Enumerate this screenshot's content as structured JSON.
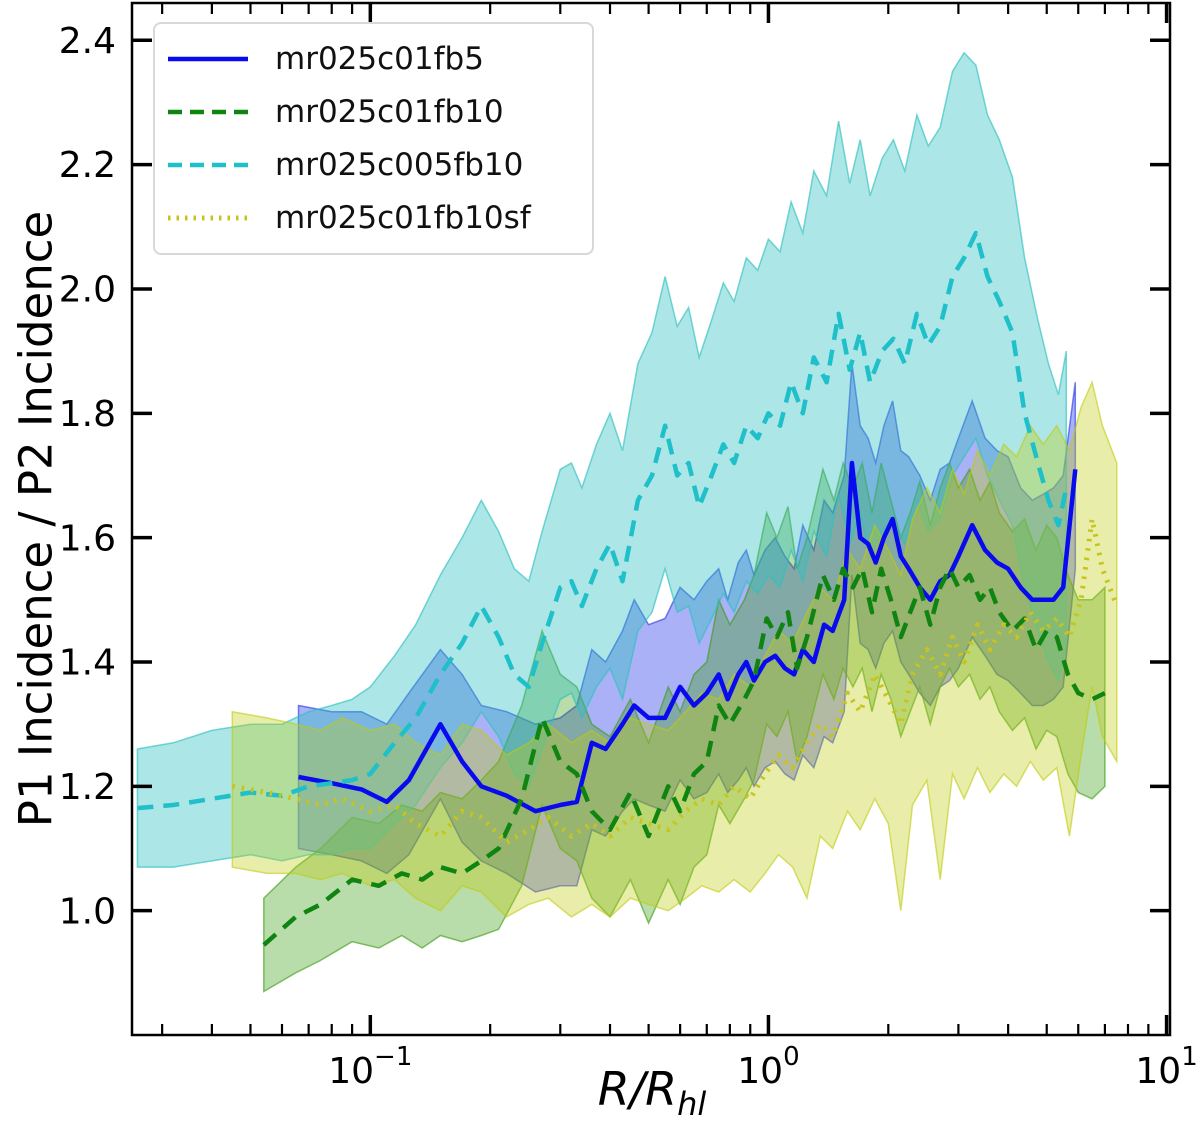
{
  "chart_data": {
    "type": "line",
    "xlabel_main": "R/R",
    "xlabel_sub": "hl",
    "ylabel": "P1 Incidence / P2 Incidence",
    "x_scale": "log",
    "grid": false,
    "legend_position": "upper-left",
    "xlim": [
      0.0252,
      10.2
    ],
    "ylim": [
      0.8,
      2.46
    ],
    "yticks": [
      1.0,
      1.2,
      1.4,
      1.6,
      1.8,
      2.0,
      2.2,
      2.4
    ],
    "xticks": [
      {
        "value": 0.1,
        "base": "10",
        "exp": "−1"
      },
      {
        "value": 1,
        "base": "10",
        "exp": "0"
      },
      {
        "value": 10,
        "base": "10",
        "exp": "1"
      }
    ],
    "axis_color": "#000000",
    "series": [
      {
        "label": "mr025c01fb5",
        "color": "#0a0aee",
        "dash": "solid",
        "band_color": "#2d3de8",
        "band_opacity": 0.4,
        "x": [
          0.066,
          0.08,
          0.095,
          0.11,
          0.125,
          0.15,
          0.17,
          0.19,
          0.22,
          0.26,
          0.3,
          0.33,
          0.36,
          0.39,
          0.43,
          0.46,
          0.5,
          0.55,
          0.6,
          0.65,
          0.7,
          0.75,
          0.79,
          0.84,
          0.88,
          0.92,
          0.98,
          1.04,
          1.1,
          1.16,
          1.22,
          1.3,
          1.38,
          1.45,
          1.55,
          1.62,
          1.7,
          1.78,
          1.86,
          1.95,
          2.05,
          2.15,
          2.25,
          2.4,
          2.55,
          2.7,
          2.85,
          3.0,
          3.25,
          3.5,
          3.75,
          4.0,
          4.3,
          4.6,
          4.9,
          5.2,
          5.5,
          5.9
        ],
        "y": [
          1.215,
          1.205,
          1.195,
          1.175,
          1.21,
          1.3,
          1.24,
          1.2,
          1.185,
          1.16,
          1.17,
          1.175,
          1.27,
          1.26,
          1.3,
          1.33,
          1.31,
          1.31,
          1.36,
          1.33,
          1.35,
          1.38,
          1.34,
          1.38,
          1.4,
          1.37,
          1.4,
          1.41,
          1.39,
          1.38,
          1.42,
          1.4,
          1.46,
          1.45,
          1.5,
          1.72,
          1.6,
          1.59,
          1.56,
          1.6,
          1.63,
          1.57,
          1.55,
          1.52,
          1.5,
          1.53,
          1.54,
          1.57,
          1.62,
          1.58,
          1.56,
          1.55,
          1.52,
          1.5,
          1.5,
          1.5,
          1.52,
          1.71
        ],
        "band_upper": [
          1.33,
          1.32,
          1.32,
          1.3,
          1.35,
          1.42,
          1.38,
          1.33,
          1.32,
          1.3,
          1.31,
          1.33,
          1.42,
          1.4,
          1.45,
          1.5,
          1.46,
          1.47,
          1.52,
          1.5,
          1.53,
          1.55,
          1.5,
          1.56,
          1.58,
          1.54,
          1.58,
          1.6,
          1.57,
          1.55,
          1.62,
          1.58,
          1.66,
          1.64,
          1.7,
          1.88,
          1.78,
          1.76,
          1.72,
          1.78,
          1.82,
          1.74,
          1.73,
          1.7,
          1.66,
          1.71,
          1.72,
          1.76,
          1.82,
          1.76,
          1.74,
          1.73,
          1.68,
          1.66,
          1.67,
          1.68,
          1.7,
          1.85
        ],
        "band_lower": [
          1.1,
          1.09,
          1.08,
          1.06,
          1.09,
          1.18,
          1.11,
          1.08,
          1.06,
          1.03,
          1.04,
          1.04,
          1.13,
          1.12,
          1.16,
          1.18,
          1.17,
          1.16,
          1.21,
          1.18,
          1.19,
          1.22,
          1.19,
          1.21,
          1.23,
          1.2,
          1.23,
          1.24,
          1.22,
          1.21,
          1.25,
          1.23,
          1.28,
          1.27,
          1.32,
          1.54,
          1.43,
          1.42,
          1.39,
          1.43,
          1.45,
          1.4,
          1.38,
          1.35,
          1.33,
          1.36,
          1.37,
          1.39,
          1.44,
          1.41,
          1.38,
          1.37,
          1.35,
          1.33,
          1.33,
          1.34,
          1.36,
          1.55
        ]
      },
      {
        "label": "mr025c01fb10",
        "color": "#108410",
        "dash": "dashed",
        "band_color": "#379b0f",
        "band_opacity": 0.35,
        "x": [
          0.054,
          0.065,
          0.075,
          0.09,
          0.105,
          0.12,
          0.135,
          0.15,
          0.17,
          0.19,
          0.21,
          0.24,
          0.27,
          0.3,
          0.33,
          0.36,
          0.4,
          0.45,
          0.5,
          0.56,
          0.6,
          0.65,
          0.7,
          0.75,
          0.8,
          0.87,
          0.92,
          0.99,
          1.05,
          1.12,
          1.18,
          1.25,
          1.37,
          1.46,
          1.54,
          1.63,
          1.72,
          1.82,
          1.92,
          2.03,
          2.15,
          2.27,
          2.4,
          2.55,
          2.7,
          2.85,
          3.0,
          3.2,
          3.4,
          3.6,
          3.8,
          4.1,
          4.4,
          4.7,
          5.0,
          5.3,
          5.65,
          6.0,
          6.5,
          7.0
        ],
        "y": [
          0.945,
          0.99,
          1.01,
          1.05,
          1.04,
          1.06,
          1.05,
          1.07,
          1.06,
          1.08,
          1.1,
          1.18,
          1.31,
          1.24,
          1.22,
          1.16,
          1.13,
          1.19,
          1.12,
          1.2,
          1.16,
          1.22,
          1.24,
          1.33,
          1.3,
          1.34,
          1.37,
          1.47,
          1.44,
          1.48,
          1.39,
          1.44,
          1.54,
          1.5,
          1.55,
          1.52,
          1.55,
          1.48,
          1.55,
          1.5,
          1.44,
          1.48,
          1.52,
          1.46,
          1.52,
          1.55,
          1.52,
          1.54,
          1.5,
          1.52,
          1.48,
          1.45,
          1.47,
          1.42,
          1.45,
          1.44,
          1.38,
          1.35,
          1.34,
          1.35
        ],
        "band_upper": [
          1.02,
          1.07,
          1.1,
          1.15,
          1.14,
          1.17,
          1.16,
          1.19,
          1.18,
          1.21,
          1.24,
          1.33,
          1.45,
          1.38,
          1.36,
          1.3,
          1.28,
          1.34,
          1.27,
          1.36,
          1.32,
          1.38,
          1.4,
          1.5,
          1.46,
          1.5,
          1.54,
          1.64,
          1.6,
          1.65,
          1.55,
          1.6,
          1.71,
          1.66,
          1.72,
          1.68,
          1.72,
          1.64,
          1.72,
          1.66,
          1.6,
          1.64,
          1.69,
          1.62,
          1.68,
          1.72,
          1.68,
          1.71,
          1.66,
          1.69,
          1.64,
          1.61,
          1.63,
          1.58,
          1.62,
          1.6,
          1.54,
          1.5,
          1.5,
          1.52
        ],
        "band_lower": [
          0.87,
          0.9,
          0.92,
          0.95,
          0.94,
          0.96,
          0.94,
          0.96,
          0.95,
          0.96,
          0.97,
          1.04,
          1.17,
          1.1,
          1.08,
          1.02,
          0.99,
          1.05,
          0.98,
          1.05,
          1.01,
          1.07,
          1.09,
          1.17,
          1.14,
          1.18,
          1.21,
          1.3,
          1.28,
          1.32,
          1.24,
          1.28,
          1.38,
          1.34,
          1.39,
          1.36,
          1.39,
          1.32,
          1.38,
          1.34,
          1.28,
          1.32,
          1.36,
          1.3,
          1.36,
          1.39,
          1.36,
          1.38,
          1.34,
          1.36,
          1.32,
          1.29,
          1.31,
          1.26,
          1.29,
          1.28,
          1.22,
          1.19,
          1.18,
          1.2
        ]
      },
      {
        "label": "mr025c005fb10",
        "color": "#1fc0ca",
        "dash": "dashed",
        "band_color": "#30c0c0",
        "band_opacity": 0.4,
        "x": [
          0.026,
          0.032,
          0.04,
          0.05,
          0.06,
          0.07,
          0.08,
          0.09,
          0.1,
          0.115,
          0.13,
          0.15,
          0.17,
          0.19,
          0.21,
          0.23,
          0.25,
          0.27,
          0.3,
          0.32,
          0.34,
          0.37,
          0.4,
          0.43,
          0.47,
          0.51,
          0.55,
          0.59,
          0.63,
          0.67,
          0.72,
          0.77,
          0.82,
          0.88,
          0.94,
          1.0,
          1.07,
          1.14,
          1.22,
          1.3,
          1.4,
          1.5,
          1.6,
          1.7,
          1.8,
          1.93,
          2.06,
          2.2,
          2.36,
          2.52,
          2.7,
          2.9,
          3.1,
          3.32,
          3.55,
          3.8,
          4.1,
          4.4,
          4.75,
          5.05,
          5.35,
          5.6
        ],
        "y": [
          1.165,
          1.17,
          1.18,
          1.19,
          1.185,
          1.2,
          1.205,
          1.21,
          1.22,
          1.27,
          1.31,
          1.38,
          1.43,
          1.49,
          1.44,
          1.38,
          1.36,
          1.43,
          1.52,
          1.53,
          1.49,
          1.55,
          1.59,
          1.53,
          1.66,
          1.7,
          1.78,
          1.7,
          1.72,
          1.65,
          1.7,
          1.75,
          1.72,
          1.78,
          1.76,
          1.8,
          1.78,
          1.85,
          1.8,
          1.89,
          1.85,
          1.96,
          1.87,
          1.93,
          1.85,
          1.9,
          1.92,
          1.88,
          1.96,
          1.91,
          1.94,
          2.02,
          2.05,
          2.09,
          2.02,
          1.98,
          1.93,
          1.8,
          1.72,
          1.66,
          1.62,
          1.68
        ],
        "band_upper": [
          1.26,
          1.27,
          1.29,
          1.3,
          1.3,
          1.32,
          1.33,
          1.34,
          1.36,
          1.41,
          1.46,
          1.54,
          1.6,
          1.66,
          1.61,
          1.55,
          1.53,
          1.61,
          1.71,
          1.72,
          1.68,
          1.75,
          1.8,
          1.74,
          1.88,
          1.93,
          2.02,
          1.94,
          1.97,
          1.89,
          1.95,
          2.01,
          1.98,
          2.05,
          2.03,
          2.08,
          2.06,
          2.14,
          2.09,
          2.19,
          2.15,
          2.27,
          2.17,
          2.24,
          2.15,
          2.21,
          2.24,
          2.19,
          2.28,
          2.23,
          2.26,
          2.35,
          2.38,
          2.36,
          2.28,
          2.24,
          2.18,
          2.05,
          1.95,
          1.88,
          1.83,
          1.9
        ],
        "band_lower": [
          1.07,
          1.07,
          1.08,
          1.09,
          1.08,
          1.09,
          1.09,
          1.1,
          1.1,
          1.14,
          1.17,
          1.23,
          1.27,
          1.32,
          1.28,
          1.22,
          1.2,
          1.26,
          1.34,
          1.35,
          1.31,
          1.36,
          1.39,
          1.34,
          1.45,
          1.48,
          1.55,
          1.48,
          1.49,
          1.43,
          1.47,
          1.51,
          1.48,
          1.53,
          1.51,
          1.54,
          1.52,
          1.58,
          1.53,
          1.61,
          1.57,
          1.67,
          1.59,
          1.64,
          1.57,
          1.61,
          1.62,
          1.59,
          1.66,
          1.61,
          1.63,
          1.7,
          1.73,
          1.76,
          1.7,
          1.66,
          1.62,
          1.52,
          1.45,
          1.4,
          1.37,
          1.43
        ]
      },
      {
        "label": "mr025c01fb10sf",
        "color": "#c9c41d",
        "dash": "dotted",
        "band_color": "#c0cb0c",
        "band_opacity": 0.35,
        "x": [
          0.045,
          0.055,
          0.065,
          0.075,
          0.085,
          0.1,
          0.115,
          0.13,
          0.15,
          0.17,
          0.19,
          0.22,
          0.25,
          0.28,
          0.32,
          0.36,
          0.4,
          0.45,
          0.5,
          0.56,
          0.62,
          0.68,
          0.75,
          0.82,
          0.9,
          0.98,
          1.06,
          1.15,
          1.25,
          1.35,
          1.45,
          1.58,
          1.7,
          1.85,
          2.0,
          2.15,
          2.3,
          2.5,
          2.7,
          2.9,
          3.1,
          3.35,
          3.6,
          3.9,
          4.2,
          4.55,
          4.9,
          5.3,
          5.7,
          6.1,
          6.5,
          6.9,
          7.5
        ],
        "y": [
          1.2,
          1.19,
          1.18,
          1.17,
          1.18,
          1.16,
          1.17,
          1.14,
          1.12,
          1.16,
          1.15,
          1.11,
          1.13,
          1.15,
          1.12,
          1.14,
          1.12,
          1.15,
          1.14,
          1.13,
          1.16,
          1.18,
          1.17,
          1.2,
          1.18,
          1.22,
          1.25,
          1.23,
          1.27,
          1.3,
          1.28,
          1.35,
          1.32,
          1.38,
          1.34,
          1.3,
          1.38,
          1.42,
          1.38,
          1.44,
          1.4,
          1.46,
          1.42,
          1.46,
          1.44,
          1.48,
          1.45,
          1.47,
          1.44,
          1.5,
          1.63,
          1.55,
          1.49
        ],
        "band_upper": [
          1.32,
          1.31,
          1.3,
          1.29,
          1.31,
          1.29,
          1.3,
          1.27,
          1.25,
          1.3,
          1.29,
          1.25,
          1.27,
          1.3,
          1.27,
          1.29,
          1.27,
          1.31,
          1.3,
          1.29,
          1.32,
          1.35,
          1.34,
          1.38,
          1.36,
          1.41,
          1.45,
          1.43,
          1.48,
          1.52,
          1.5,
          1.58,
          1.55,
          1.62,
          1.58,
          1.54,
          1.63,
          1.68,
          1.64,
          1.71,
          1.67,
          1.74,
          1.7,
          1.75,
          1.73,
          1.78,
          1.75,
          1.78,
          1.74,
          1.81,
          1.85,
          1.78,
          1.72
        ],
        "band_lower": [
          1.07,
          1.06,
          1.06,
          1.05,
          1.06,
          1.04,
          1.05,
          1.02,
          1.0,
          1.04,
          1.03,
          0.99,
          1.01,
          1.02,
          0.99,
          1.01,
          0.99,
          1.02,
          1.01,
          1.0,
          1.02,
          1.04,
          1.03,
          1.05,
          1.03,
          1.06,
          1.09,
          1.07,
          1.02,
          1.12,
          1.1,
          1.16,
          1.13,
          1.18,
          1.14,
          1.0,
          1.17,
          1.21,
          1.05,
          1.22,
          1.18,
          1.23,
          1.19,
          1.22,
          1.2,
          1.24,
          1.21,
          1.23,
          1.12,
          1.25,
          1.36,
          1.28,
          1.24
        ]
      }
    ]
  }
}
